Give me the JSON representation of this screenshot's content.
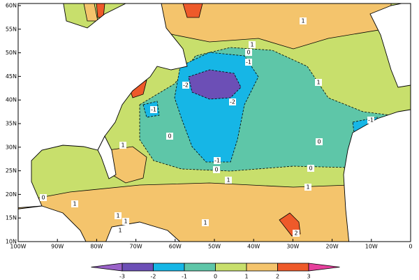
{
  "map": {
    "lat_labels": [
      "60N",
      "55N",
      "50N",
      "45N",
      "40N",
      "35N",
      "30N",
      "25N",
      "20N",
      "15N",
      "10N"
    ],
    "lon_labels": [
      "100W",
      "90W",
      "80W",
      "70W",
      "60W",
      "50W",
      "40W",
      "30W",
      "20W",
      "10W",
      "0"
    ],
    "colorbar": {
      "ticks": [
        -3,
        -2,
        -1,
        0,
        1,
        2,
        3
      ],
      "colors": [
        "#9a62c8",
        "#6c4fb6",
        "#16b6e6",
        "#5ec6a8",
        "#c8df6c",
        "#f4c46c",
        "#ee5a2a",
        "#e6409c"
      ]
    },
    "contour_labels": [
      1,
      1,
      0,
      -1,
      -2,
      -2,
      -1,
      0,
      1,
      -1,
      0,
      -1,
      0,
      0,
      1,
      1,
      1,
      0,
      1,
      1,
      1,
      1,
      2,
      1
    ]
  }
}
